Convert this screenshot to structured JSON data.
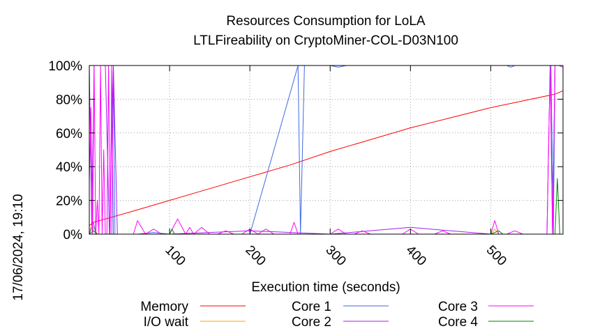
{
  "chart_data": {
    "type": "line",
    "title": "Resources Consumption for LoLA",
    "subtitle": "LTLFireability on CryptoMiner-COL-D03N100",
    "xlabel": "Execution time (seconds)",
    "ylabel": "",
    "timestamp": "17/06/2024, 19:10",
    "xlim": [
      0,
      590
    ],
    "ylim": [
      0,
      100
    ],
    "grid": true,
    "legend_position": "bottom",
    "x_ticks": [
      {
        "value": 100,
        "label": "100"
      },
      {
        "value": 200,
        "label": "200"
      },
      {
        "value": 300,
        "label": "300"
      },
      {
        "value": 400,
        "label": "400"
      },
      {
        "value": 500,
        "label": "500"
      }
    ],
    "y_ticks": [
      {
        "value": 0,
        "label": "0%"
      },
      {
        "value": 20,
        "label": "20%"
      },
      {
        "value": 40,
        "label": "40%"
      },
      {
        "value": 60,
        "label": "60%"
      },
      {
        "value": 80,
        "label": "80%"
      },
      {
        "value": 100,
        "label": "100%"
      }
    ],
    "series": [
      {
        "name": "Memory",
        "color": "#ff0000",
        "x": [
          0,
          5,
          20,
          50,
          100,
          150,
          200,
          250,
          300,
          350,
          400,
          450,
          500,
          550,
          580,
          590
        ],
        "y": [
          5,
          7,
          9,
          13,
          20,
          27,
          34,
          41,
          49,
          56,
          63,
          69,
          75,
          80,
          83,
          85
        ]
      },
      {
        "name": "I/O wait",
        "color": "#ffa500",
        "x": [
          0,
          2,
          4,
          6,
          8,
          10,
          15,
          20,
          40,
          60,
          100,
          200,
          300,
          400,
          500,
          505,
          510,
          560,
          590
        ],
        "y": [
          0,
          4,
          1,
          5,
          2,
          0,
          0,
          0,
          0,
          0,
          0,
          0,
          0,
          0,
          0,
          3,
          0,
          0,
          0
        ]
      },
      {
        "name": "Core 1",
        "color": "#4169e1",
        "x": [
          0,
          5,
          8,
          10,
          28,
          30,
          32,
          35,
          60,
          80,
          100,
          200,
          260,
          263,
          268,
          270,
          300,
          310,
          320,
          400,
          500,
          520,
          525,
          530,
          560,
          575,
          578,
          580,
          590
        ],
        "y": [
          0,
          7,
          0,
          0,
          0,
          100,
          0,
          0,
          0,
          1,
          0,
          0,
          100,
          0,
          100,
          100,
          100,
          99,
          100,
          100,
          100,
          100,
          99,
          100,
          100,
          100,
          0,
          100,
          100
        ]
      },
      {
        "name": "Core 2",
        "color": "#a020f0",
        "x": [
          0,
          3,
          6,
          9,
          12,
          20,
          25,
          30,
          35,
          40,
          100,
          200,
          300,
          400,
          500,
          570,
          574,
          577,
          580,
          585,
          590
        ],
        "y": [
          100,
          5,
          100,
          100,
          100,
          100,
          0,
          100,
          0,
          0,
          0,
          2,
          0,
          4,
          0,
          0,
          100,
          0,
          100,
          100,
          99
        ]
      },
      {
        "name": "Core 3",
        "color": "#ff00ff",
        "x": [
          0,
          2,
          4,
          6,
          8,
          10,
          12,
          14,
          16,
          18,
          20,
          22,
          24,
          26,
          28,
          30,
          32,
          34,
          36,
          40,
          50,
          55,
          60,
          70,
          80,
          90,
          100,
          110,
          120,
          125,
          130,
          140,
          150,
          160,
          170,
          180,
          190,
          200,
          210,
          220,
          230,
          240,
          250,
          255,
          260,
          270,
          280,
          290,
          300,
          310,
          320,
          330,
          340,
          350,
          360,
          370,
          380,
          390,
          400,
          410,
          420,
          430,
          440,
          450,
          460,
          470,
          480,
          490,
          500,
          505,
          510,
          520,
          530,
          540,
          550,
          560,
          570,
          574,
          577,
          580,
          585,
          590
        ],
        "y": [
          30,
          75,
          0,
          100,
          0,
          20,
          0,
          100,
          0,
          50,
          0,
          0,
          100,
          0,
          100,
          0,
          0,
          0,
          0,
          0,
          0,
          0,
          8,
          0,
          3,
          0,
          0,
          9,
          0,
          4,
          0,
          4,
          0,
          0,
          2,
          0,
          0,
          3,
          0,
          3,
          0,
          0,
          0,
          7,
          0,
          0,
          0,
          0,
          0,
          3,
          0,
          0,
          2,
          0,
          0,
          0,
          0,
          0,
          3,
          0,
          0,
          0,
          2,
          0,
          0,
          0,
          0,
          0,
          0,
          8,
          0,
          0,
          2,
          0,
          0,
          0,
          0,
          100,
          0,
          100,
          100,
          100
        ]
      },
      {
        "name": "Core 4",
        "color": "#008000",
        "x": [
          0,
          5,
          10,
          15,
          30,
          60,
          100,
          103,
          106,
          150,
          200,
          250,
          300,
          350,
          400,
          450,
          500,
          510,
          515,
          520,
          560,
          570,
          575,
          580,
          583,
          586,
          590
        ],
        "y": [
          0,
          2,
          0,
          0,
          0,
          0,
          0,
          3,
          0,
          0,
          0,
          0,
          0,
          0,
          0,
          0,
          0,
          2,
          0,
          0,
          0,
          0,
          0,
          0,
          33,
          0,
          0
        ]
      }
    ]
  }
}
